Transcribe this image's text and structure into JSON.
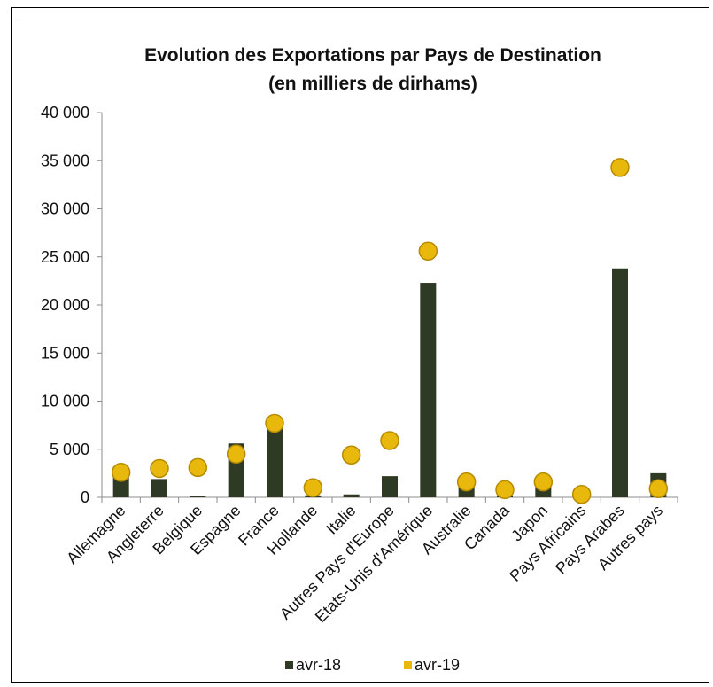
{
  "chart_data": {
    "type": "bar",
    "title": "Evolution des Exportations par Pays de Destination",
    "subtitle": "(en milliers de dirhams)",
    "categories": [
      "Allemagne",
      "Angleterre",
      "Belgique",
      "Espagne",
      "France",
      "Hollande",
      "Italie",
      "Autres Pays d'Europe",
      "Etats-Unis d'Amérique",
      "Australie",
      "Canada",
      "Japon",
      "Pays Africains",
      "Pays Arabes",
      "Autres pays"
    ],
    "series": [
      {
        "name": "avr-18",
        "style": "bar",
        "color": "#2f3a25",
        "values": [
          2200,
          1900,
          100,
          5600,
          7300,
          200,
          300,
          2200,
          22300,
          1300,
          200,
          1500,
          100,
          23800,
          2500
        ]
      },
      {
        "name": "avr-19",
        "style": "marker",
        "color": "#e8b80c",
        "values": [
          2600,
          3000,
          3100,
          4500,
          7700,
          1000,
          4400,
          5900,
          25600,
          1600,
          800,
          1600,
          300,
          34300,
          900
        ]
      }
    ],
    "yticks": [
      "0",
      "5 000",
      "10 000",
      "15 000",
      "20 000",
      "25 000",
      "30 000",
      "35 000",
      "40 000"
    ],
    "ylim": [
      0,
      40000
    ],
    "grid": false,
    "legend_position": "bottom"
  }
}
